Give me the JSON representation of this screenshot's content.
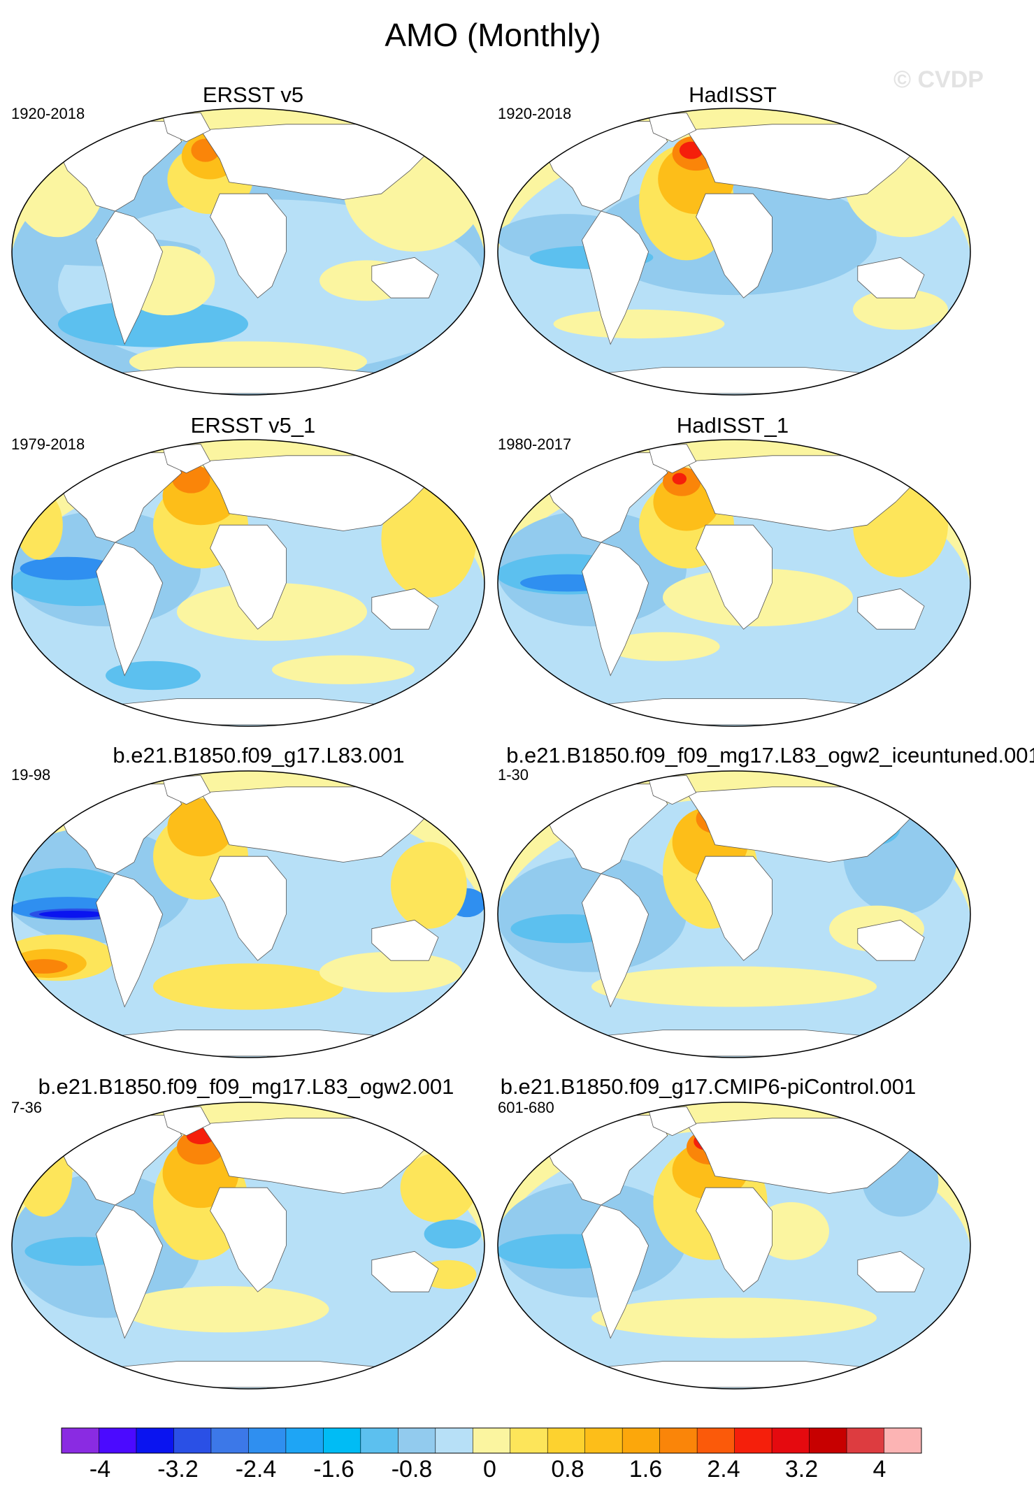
{
  "title": "AMO (Monthly)",
  "watermark": "© CVDP",
  "panels": [
    {
      "title": "ERSST v5",
      "years": "1920-2018",
      "pattern": 0
    },
    {
      "title": "HadISST",
      "years": "1920-2018",
      "pattern": 1
    },
    {
      "title": "ERSST v5_1",
      "years": "1979-2018",
      "pattern": 2
    },
    {
      "title": "HadISST_1",
      "years": "1980-2017",
      "pattern": 3
    },
    {
      "title": "b.e21.B1850.f09_g17.L83.001",
      "years": "19-98",
      "pattern": 4
    },
    {
      "title": "b.e21.B1850.f09_f09_mg17.L83_ogw2_iceuntuned.001",
      "years": "1-30",
      "pattern": 5
    },
    {
      "title": "b.e21.B1850.f09_f09_mg17.L83_ogw2.001",
      "years": "7-36",
      "pattern": 6
    },
    {
      "title": "b.e21.B1850.f09_g17.CMIP6-piControl.001",
      "years": "601-680",
      "pattern": 7
    }
  ],
  "colorbar": {
    "colors": [
      "#8a2be2",
      "#4b0aff",
      "#0a14f0",
      "#2a50e6",
      "#3c78e8",
      "#2f8ff0",
      "#1ea5f5",
      "#00bcf5",
      "#5cc0ef",
      "#92cbee",
      "#b7e0f7",
      "#fbf5a0",
      "#fde55a",
      "#fdd22f",
      "#fdbe19",
      "#fca70b",
      "#fa8509",
      "#fb5a0a",
      "#f51f0b",
      "#e50a0f",
      "#c70000",
      "#dd3c40",
      "#fcb4b4"
    ],
    "tick_labels": [
      "-4",
      "-3.2",
      "-2.4",
      "-1.6",
      "-0.8",
      "0",
      "0.8",
      "1.6",
      "2.4",
      "3.2",
      "4"
    ]
  }
}
